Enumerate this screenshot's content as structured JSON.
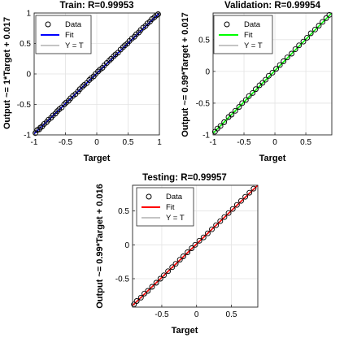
{
  "chart_data": [
    {
      "type": "scatter",
      "title": "Train: R=0.99953",
      "xlabel": "Target",
      "ylabel": "Output ~= 1*Target + 0.017",
      "xlim": [
        -1,
        1
      ],
      "ylim": [
        -1,
        1
      ],
      "xticks": [
        "-1",
        "-0.5",
        "0",
        "0.5",
        "1"
      ],
      "yticks": [
        "-1",
        "-0.5",
        "0",
        "0.5",
        "1"
      ],
      "grid": true,
      "legend": [
        "Data",
        "Fit",
        "Y = T"
      ],
      "legend_position": "top-left",
      "fit_color": "#0000ff",
      "fit_line": {
        "slope": 1.0,
        "intercept": 0.017
      },
      "data": {
        "x": [
          -0.98,
          -0.95,
          -0.92,
          -0.9,
          -0.87,
          -0.84,
          -0.8,
          -0.77,
          -0.73,
          -0.7,
          -0.66,
          -0.63,
          -0.6,
          -0.56,
          -0.52,
          -0.49,
          -0.45,
          -0.42,
          -0.38,
          -0.34,
          -0.3,
          -0.27,
          -0.23,
          -0.2,
          -0.16,
          -0.12,
          -0.09,
          -0.05,
          -0.02,
          0.02,
          0.05,
          0.09,
          0.12,
          0.16,
          0.2,
          0.23,
          0.27,
          0.3,
          0.34,
          0.38,
          0.42,
          0.45,
          0.49,
          0.52,
          0.56,
          0.6,
          0.63,
          0.67,
          0.7,
          0.74,
          0.78,
          0.81,
          0.85,
          0.88,
          0.92,
          0.95,
          0.98
        ],
        "y": [
          -0.97,
          -0.92,
          -0.91,
          -0.88,
          -0.86,
          -0.82,
          -0.79,
          -0.75,
          -0.72,
          -0.68,
          -0.65,
          -0.61,
          -0.58,
          -0.55,
          -0.5,
          -0.47,
          -0.44,
          -0.4,
          -0.36,
          -0.33,
          -0.29,
          -0.25,
          -0.21,
          -0.18,
          -0.15,
          -0.1,
          -0.07,
          -0.04,
          0.0,
          0.04,
          0.07,
          0.1,
          0.14,
          0.18,
          0.22,
          0.25,
          0.29,
          0.32,
          0.35,
          0.4,
          0.44,
          0.47,
          0.5,
          0.54,
          0.58,
          0.61,
          0.65,
          0.68,
          0.72,
          0.76,
          0.79,
          0.83,
          0.86,
          0.9,
          0.93,
          0.96,
          0.98
        ]
      }
    },
    {
      "type": "scatter",
      "title": "Validation: R=0.99954",
      "xlabel": "Target",
      "ylabel": "Output ~= 0.99*Target + 0.017",
      "xlim": [
        -1,
        0.92
      ],
      "ylim": [
        -1,
        0.92
      ],
      "xticks": [
        "-1",
        "-0.5",
        "0",
        "0.5"
      ],
      "yticks": [
        "-1",
        "-0.5",
        "0",
        "0.5"
      ],
      "grid": true,
      "legend": [
        "Data",
        "Fit",
        "Y = T"
      ],
      "legend_position": "top-left",
      "fit_color": "#00ff00",
      "fit_line": {
        "slope": 0.99,
        "intercept": 0.017
      },
      "data": {
        "x": [
          -0.97,
          -0.93,
          -0.88,
          -0.82,
          -0.75,
          -0.7,
          -0.64,
          -0.58,
          -0.53,
          -0.47,
          -0.42,
          -0.36,
          -0.31,
          -0.25,
          -0.2,
          -0.15,
          -0.1,
          -0.04,
          0.02,
          0.08,
          0.14,
          0.2,
          0.27,
          0.33,
          0.39,
          0.46,
          0.52,
          0.58,
          0.65,
          0.71,
          0.77,
          0.83,
          0.88
        ],
        "y": [
          -0.95,
          -0.9,
          -0.86,
          -0.8,
          -0.72,
          -0.68,
          -0.62,
          -0.56,
          -0.5,
          -0.45,
          -0.39,
          -0.34,
          -0.28,
          -0.22,
          -0.18,
          -0.13,
          -0.07,
          -0.02,
          0.04,
          0.1,
          0.16,
          0.22,
          0.28,
          0.35,
          0.41,
          0.47,
          0.53,
          0.6,
          0.66,
          0.72,
          0.78,
          0.84,
          0.89
        ]
      }
    },
    {
      "type": "scatter",
      "title": "Testing: R=0.99957",
      "xlabel": "Target",
      "ylabel": "Output ~= 0.99*Target + 0.016",
      "xlim": [
        -0.92,
        0.88
      ],
      "ylim": [
        -0.92,
        0.88
      ],
      "xticks": [
        "-0.5",
        "0",
        "0.5"
      ],
      "yticks": [
        "-0.5",
        "0",
        "0.5"
      ],
      "grid": true,
      "legend": [
        "Data",
        "Fit",
        "Y = T"
      ],
      "legend_position": "top-left",
      "fit_color": "#ff0000",
      "fit_line": {
        "slope": 0.99,
        "intercept": 0.016
      },
      "data": {
        "x": [
          -0.9,
          -0.86,
          -0.8,
          -0.75,
          -0.7,
          -0.64,
          -0.58,
          -0.52,
          -0.47,
          -0.41,
          -0.35,
          -0.3,
          -0.24,
          -0.19,
          -0.13,
          -0.07,
          -0.02,
          0.04,
          0.1,
          0.16,
          0.22,
          0.28,
          0.34,
          0.4,
          0.46,
          0.52,
          0.58,
          0.64,
          0.7,
          0.76,
          0.82
        ],
        "y": [
          -0.88,
          -0.83,
          -0.78,
          -0.72,
          -0.68,
          -0.62,
          -0.56,
          -0.5,
          -0.45,
          -0.39,
          -0.33,
          -0.28,
          -0.22,
          -0.17,
          -0.11,
          -0.05,
          0.0,
          0.06,
          0.11,
          0.17,
          0.23,
          0.29,
          0.35,
          0.41,
          0.47,
          0.53,
          0.59,
          0.65,
          0.71,
          0.77,
          0.83
        ]
      }
    }
  ]
}
